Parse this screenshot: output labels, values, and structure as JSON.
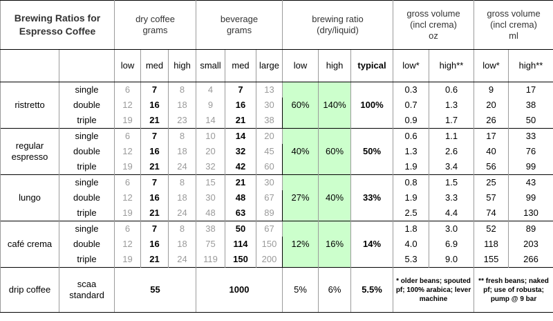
{
  "header": {
    "title_lines": [
      "Brewing Ratios for",
      "Espresso Coffee"
    ],
    "columns": [
      {
        "lines": [
          "dry coffee",
          "grams"
        ],
        "subs": [
          "low",
          "med",
          "high"
        ]
      },
      {
        "lines": [
          "beverage",
          "grams"
        ],
        "subs": [
          "small",
          "med",
          "large"
        ]
      },
      {
        "lines": [
          "brewing ratio",
          "(dry/liquid)"
        ],
        "subs": [
          "low",
          "high",
          "typical"
        ]
      },
      {
        "lines": [
          "gross volume",
          "(incl crema)",
          "oz"
        ],
        "subs": [
          "low*",
          "high**"
        ]
      },
      {
        "lines": [
          "gross volume",
          "(incl crema)",
          "ml"
        ],
        "subs": [
          "low*",
          "high**"
        ]
      }
    ]
  },
  "rows": [
    {
      "name": [
        "ristretto"
      ],
      "ratio": [
        "60%",
        "140%",
        "100%"
      ],
      "sizes": [
        {
          "size": "single",
          "dry": [
            "6",
            "7",
            "8"
          ],
          "bev": [
            "4",
            "7",
            "13"
          ],
          "oz": [
            "0.3",
            "0.6"
          ],
          "ml": [
            "9",
            "17"
          ]
        },
        {
          "size": "double",
          "dry": [
            "12",
            "16",
            "18"
          ],
          "bev": [
            "9",
            "16",
            "30"
          ],
          "oz": [
            "0.7",
            "1.3"
          ],
          "ml": [
            "20",
            "38"
          ]
        },
        {
          "size": "triple",
          "dry": [
            "19",
            "21",
            "23"
          ],
          "bev": [
            "14",
            "21",
            "38"
          ],
          "oz": [
            "0.9",
            "1.7"
          ],
          "ml": [
            "26",
            "50"
          ]
        }
      ]
    },
    {
      "name": [
        "regular",
        "espresso"
      ],
      "ratio": [
        "40%",
        "60%",
        "50%"
      ],
      "sizes": [
        {
          "size": "single",
          "dry": [
            "6",
            "7",
            "8"
          ],
          "bev": [
            "10",
            "14",
            "20"
          ],
          "oz": [
            "0.6",
            "1.1"
          ],
          "ml": [
            "17",
            "33"
          ]
        },
        {
          "size": "double",
          "dry": [
            "12",
            "16",
            "18"
          ],
          "bev": [
            "20",
            "32",
            "45"
          ],
          "oz": [
            "1.3",
            "2.6"
          ],
          "ml": [
            "40",
            "76"
          ]
        },
        {
          "size": "triple",
          "dry": [
            "19",
            "21",
            "24"
          ],
          "bev": [
            "32",
            "42",
            "60"
          ],
          "oz": [
            "1.9",
            "3.4"
          ],
          "ml": [
            "56",
            "99"
          ]
        }
      ]
    },
    {
      "name": [
        "lungo"
      ],
      "ratio": [
        "27%",
        "40%",
        "33%"
      ],
      "sizes": [
        {
          "size": "single",
          "dry": [
            "6",
            "7",
            "8"
          ],
          "bev": [
            "15",
            "21",
            "30"
          ],
          "oz": [
            "0.8",
            "1.5"
          ],
          "ml": [
            "25",
            "43"
          ]
        },
        {
          "size": "double",
          "dry": [
            "12",
            "16",
            "18"
          ],
          "bev": [
            "30",
            "48",
            "67"
          ],
          "oz": [
            "1.9",
            "3.3"
          ],
          "ml": [
            "57",
            "99"
          ]
        },
        {
          "size": "triple",
          "dry": [
            "19",
            "21",
            "24"
          ],
          "bev": [
            "48",
            "63",
            "89"
          ],
          "oz": [
            "2.5",
            "4.4"
          ],
          "ml": [
            "74",
            "130"
          ]
        }
      ]
    },
    {
      "name": [
        "café crema"
      ],
      "ratio": [
        "12%",
        "16%",
        "14%"
      ],
      "sizes": [
        {
          "size": "single",
          "dry": [
            "6",
            "7",
            "8"
          ],
          "bev": [
            "38",
            "50",
            "67"
          ],
          "oz": [
            "1.8",
            "3.0"
          ],
          "ml": [
            "52",
            "89"
          ]
        },
        {
          "size": "double",
          "dry": [
            "12",
            "16",
            "18"
          ],
          "bev": [
            "75",
            "114",
            "150"
          ],
          "oz": [
            "4.0",
            "6.9"
          ],
          "ml": [
            "118",
            "203"
          ]
        },
        {
          "size": "triple",
          "dry": [
            "19",
            "21",
            "24"
          ],
          "bev": [
            "119",
            "150",
            "200"
          ],
          "oz": [
            "5.3",
            "9.0"
          ],
          "ml": [
            "155",
            "266"
          ]
        }
      ]
    }
  ],
  "drip": {
    "name": "drip coffee",
    "size_lines": [
      "scaa",
      "standard"
    ],
    "dry": "55",
    "bev": "1000",
    "ratio": [
      "5%",
      "6%",
      "5.5%"
    ],
    "notes": [
      "* older beans; spouted pf; 100% arabica; lever machine",
      "** fresh beans; naked pf; use of robusta; pump @ 9 bar"
    ]
  }
}
